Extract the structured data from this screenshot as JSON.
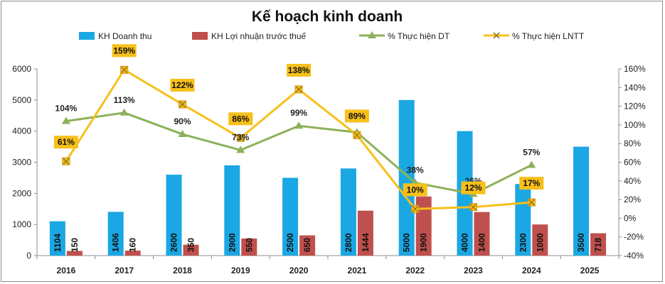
{
  "chart_data": {
    "type": "bar",
    "title": "Kế hoạch kinh doanh",
    "categories": [
      "2016",
      "2017",
      "2018",
      "2019",
      "2020",
      "2021",
      "2022",
      "2023",
      "2024",
      "2025"
    ],
    "y_left": {
      "ylim": [
        0,
        6000
      ],
      "ticks": [
        0,
        1000,
        2000,
        3000,
        4000,
        5000,
        6000
      ]
    },
    "y_right": {
      "ylim": [
        -40,
        160
      ],
      "ticks": [
        -40,
        -20,
        0,
        20,
        40,
        60,
        80,
        100,
        120,
        140,
        160
      ],
      "unit": "%"
    },
    "legend_position": "top",
    "grid": false,
    "series": [
      {
        "name": "KH Doanh thu",
        "kind": "bar",
        "axis": "left",
        "color": "#1aa7e4",
        "values": [
          1104,
          1406,
          2600,
          2900,
          2500,
          2800,
          5000,
          4000,
          2300,
          3500
        ]
      },
      {
        "name": "KH Lợi nhuận  trước thuế",
        "kind": "bar",
        "axis": "left",
        "color": "#c0504d",
        "values": [
          150,
          160,
          350,
          550,
          650,
          1444,
          1900,
          1400,
          1000,
          718
        ]
      },
      {
        "name": "% Thực hiện DT",
        "kind": "line",
        "axis": "right",
        "color": "#8db15a",
        "values": [
          104,
          113,
          90,
          73,
          99,
          92,
          38,
          26,
          57,
          null
        ]
      },
      {
        "name": "% Thực hiện LNTT",
        "kind": "line",
        "axis": "right",
        "color": "#f7c01a",
        "values": [
          61,
          159,
          122,
          86,
          138,
          89,
          10,
          12,
          17,
          null
        ]
      }
    ]
  }
}
